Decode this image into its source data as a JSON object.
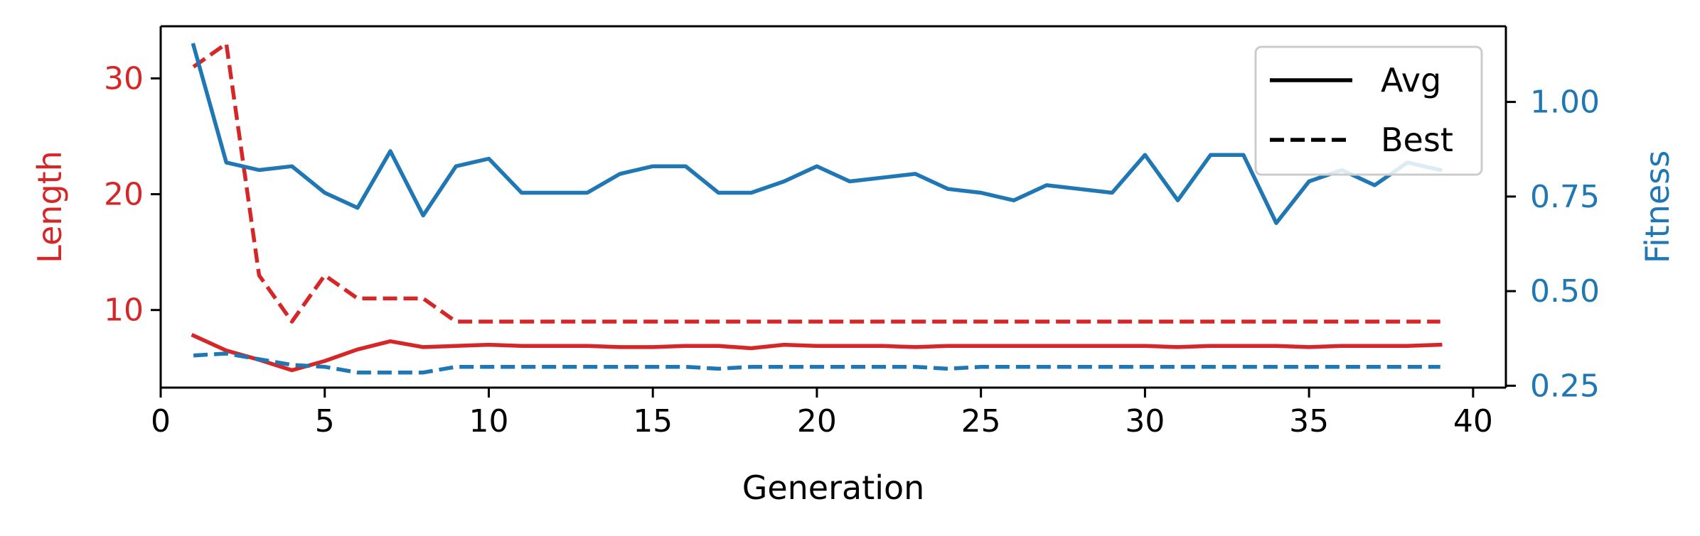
{
  "chart_data": {
    "type": "line",
    "xlabel": "Generation",
    "ylabel_left": "Length",
    "ylabel_right": "Fitness",
    "xlim": [
      0,
      41
    ],
    "ylim_left": [
      3.3,
      34.5
    ],
    "ylim_right": [
      0.245,
      1.2
    ],
    "xticks": [
      0,
      5,
      10,
      15,
      20,
      25,
      30,
      35,
      40
    ],
    "yticks_left": [
      10,
      20,
      30
    ],
    "yticks_right": [
      0.25,
      0.5,
      0.75,
      1.0
    ],
    "ytick_labels_right": [
      "0.25",
      "0.50",
      "0.75",
      "1.00"
    ],
    "legend": {
      "placement": "top-right",
      "entries": [
        {
          "label": "Avg",
          "style": "solid"
        },
        {
          "label": "Best",
          "style": "dashed"
        }
      ]
    },
    "colors": {
      "length": "#d62728",
      "fitness": "#1f77b4"
    },
    "x": [
      1,
      2,
      3,
      4,
      5,
      6,
      7,
      8,
      9,
      10,
      11,
      12,
      13,
      14,
      15,
      16,
      17,
      18,
      19,
      20,
      21,
      22,
      23,
      24,
      25,
      26,
      27,
      28,
      29,
      30,
      31,
      32,
      33,
      34,
      35,
      36,
      37,
      38,
      39
    ],
    "series": [
      {
        "axis": "left",
        "style": "solid",
        "color": "#d62728",
        "values": [
          7.8,
          6.5,
          5.7,
          4.8,
          5.6,
          6.6,
          7.3,
          6.8,
          6.9,
          7.0,
          6.9,
          6.9,
          6.9,
          6.8,
          6.8,
          6.9,
          6.9,
          6.7,
          7.0,
          6.9,
          6.9,
          6.9,
          6.8,
          6.9,
          6.9,
          6.9,
          6.9,
          6.9,
          6.9,
          6.9,
          6.8,
          6.9,
          6.9,
          6.9,
          6.8,
          6.9,
          6.9,
          6.9,
          7.0
        ]
      },
      {
        "axis": "left",
        "style": "dashed",
        "color": "#d62728",
        "values": [
          31.0,
          33.0,
          13.0,
          9.0,
          13.0,
          11.0,
          11.0,
          11.0,
          9.0,
          9.0,
          9.0,
          9.0,
          9.0,
          9.0,
          9.0,
          9.0,
          9.0,
          9.0,
          9.0,
          9.0,
          9.0,
          9.0,
          9.0,
          9.0,
          9.0,
          9.0,
          9.0,
          9.0,
          9.0,
          9.0,
          9.0,
          9.0,
          9.0,
          9.0,
          9.0,
          9.0,
          9.0,
          9.0,
          9.0
        ]
      },
      {
        "axis": "right",
        "style": "solid",
        "color": "#1f77b4",
        "values": [
          1.15,
          0.84,
          0.82,
          0.83,
          0.76,
          0.72,
          0.87,
          0.7,
          0.83,
          0.85,
          0.76,
          0.76,
          0.76,
          0.81,
          0.83,
          0.83,
          0.76,
          0.76,
          0.79,
          0.83,
          0.79,
          0.8,
          0.81,
          0.77,
          0.76,
          0.74,
          0.78,
          0.77,
          0.76,
          0.86,
          0.74,
          0.86,
          0.86,
          0.68,
          0.79,
          0.82,
          0.78,
          0.84,
          0.82
        ]
      },
      {
        "axis": "right",
        "style": "dashed",
        "color": "#1f77b4",
        "values": [
          0.33,
          0.335,
          0.32,
          0.305,
          0.3,
          0.285,
          0.285,
          0.285,
          0.3,
          0.3,
          0.3,
          0.3,
          0.3,
          0.3,
          0.3,
          0.3,
          0.295,
          0.3,
          0.3,
          0.3,
          0.3,
          0.3,
          0.3,
          0.295,
          0.3,
          0.3,
          0.3,
          0.3,
          0.3,
          0.3,
          0.3,
          0.3,
          0.3,
          0.3,
          0.3,
          0.3,
          0.3,
          0.3,
          0.3
        ]
      }
    ]
  }
}
